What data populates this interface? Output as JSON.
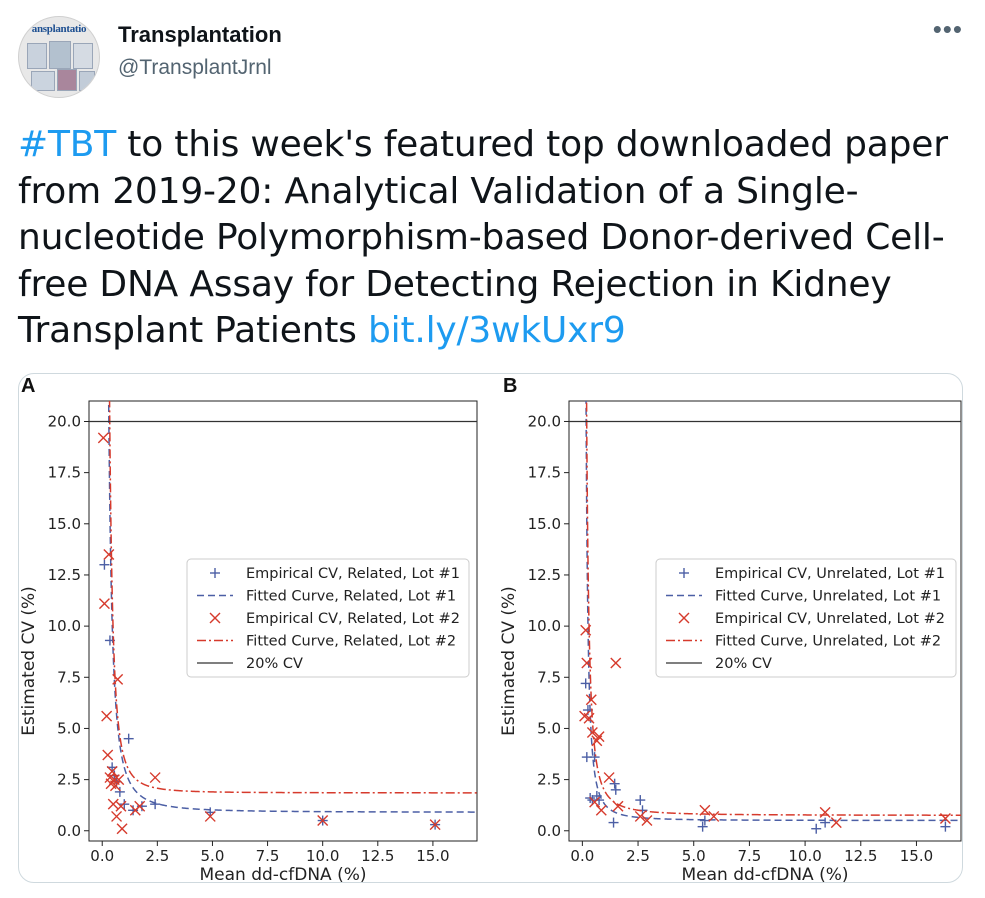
{
  "account": {
    "display_name": "Transplantation",
    "handle": "@TransplantJrnl",
    "avatar_text": "ansplantatio"
  },
  "menu": {
    "more_label": "•••"
  },
  "tweet": {
    "hashtag": "#TBT",
    "text": " to this week's featured top downloaded paper from 2019-20: Analytical Validation of a Single-nucleotide Polymorphism-based Donor-derived Cell-free DNA Assay for Detecting Rejection in Kidney Transplant Patients ",
    "link": "bit.ly/3wkUxr9"
  },
  "colors": {
    "link": "#1d9bf0",
    "series_blue": "#4c5fa5",
    "series_red": "#d63a2c"
  },
  "chart_data": [
    {
      "panel_label": "A",
      "type": "scatter",
      "xlabel": "Mean dd-cfDNA (%)",
      "ylabel": "Estimated CV (%)",
      "xlim": [
        -0.6,
        17.0
      ],
      "ylim": [
        -0.5,
        21.0
      ],
      "xticks": [
        "0.0",
        "2.5",
        "5.0",
        "7.5",
        "10.0",
        "12.5",
        "15.0"
      ],
      "yticks": [
        "0.0",
        "2.5",
        "5.0",
        "7.5",
        "10.0",
        "12.5",
        "15.0",
        "17.5",
        "20.0"
      ],
      "legend": [
        "Empirical CV, Related, Lot #1",
        "Fitted Curve, Related, Lot #1",
        "Empirical CV, Related, Lot #2",
        "Fitted Curve, Related, Lot #2",
        "20% CV"
      ],
      "series": [
        {
          "name": "Empirical CV, Related, Lot #1",
          "marker": "plus",
          "points": [
            [
              0.1,
              13.0
            ],
            [
              0.35,
              9.3
            ],
            [
              0.45,
              3.1
            ],
            [
              0.55,
              2.7
            ],
            [
              0.65,
              2.4
            ],
            [
              0.8,
              1.9
            ],
            [
              1.0,
              1.3
            ],
            [
              1.2,
              4.5
            ],
            [
              1.4,
              1.0
            ],
            [
              1.8,
              1.2
            ],
            [
              2.4,
              1.3
            ],
            [
              4.9,
              0.9
            ],
            [
              10.0,
              0.5
            ],
            [
              15.1,
              0.3
            ]
          ]
        },
        {
          "name": "Fitted Curve, Related, Lot #1",
          "style": "dashed",
          "asymptote": 0.9,
          "k": 2.2,
          "n": 1.8,
          "x_start": 0.05
        },
        {
          "name": "Empirical CV, Related, Lot #2",
          "marker": "x",
          "points": [
            [
              0.05,
              19.2
            ],
            [
              0.1,
              11.1
            ],
            [
              0.2,
              5.6
            ],
            [
              0.25,
              3.7
            ],
            [
              0.3,
              13.5
            ],
            [
              0.35,
              2.6
            ],
            [
              0.4,
              2.3
            ],
            [
              0.45,
              2.9
            ],
            [
              0.5,
              1.3
            ],
            [
              0.55,
              2.5
            ],
            [
              0.6,
              2.2
            ],
            [
              0.65,
              0.7
            ],
            [
              0.7,
              7.4
            ],
            [
              0.75,
              2.5
            ],
            [
              0.85,
              1.2
            ],
            [
              0.9,
              0.1
            ],
            [
              1.5,
              1.0
            ],
            [
              1.7,
              1.2
            ],
            [
              2.4,
              2.6
            ],
            [
              4.9,
              0.7
            ],
            [
              10.0,
              0.5
            ],
            [
              15.1,
              0.3
            ]
          ]
        },
        {
          "name": "Fitted Curve, Related, Lot #2",
          "style": "dashdot",
          "asymptote": 1.85,
          "k": 1.7,
          "n": 2.2,
          "x_start": 0.02
        },
        {
          "name": "20% CV",
          "style": "solid",
          "y": 20.0
        }
      ]
    },
    {
      "panel_label": "B",
      "type": "scatter",
      "xlabel": "Mean dd-cfDNA (%)",
      "ylabel": "Estimated CV (%)",
      "xlim": [
        -0.6,
        17.0
      ],
      "ylim": [
        -0.5,
        21.0
      ],
      "xticks": [
        "0.0",
        "2.5",
        "5.0",
        "7.5",
        "10.0",
        "12.5",
        "15.0"
      ],
      "yticks": [
        "0.0",
        "2.5",
        "5.0",
        "7.5",
        "10.0",
        "12.5",
        "15.0",
        "17.5",
        "20.0"
      ],
      "legend": [
        "Empirical CV, Unrelated, Lot #1",
        "Fitted Curve, Unrelated, Lot #1",
        "Empirical CV, Unrelated, Lot #2",
        "Fitted Curve, Unrelated, Lot #2",
        "20% CV"
      ],
      "series": [
        {
          "name": "Empirical CV, Unrelated, Lot #1",
          "marker": "plus",
          "points": [
            [
              0.15,
              7.2
            ],
            [
              0.2,
              3.6
            ],
            [
              0.25,
              5.9
            ],
            [
              0.35,
              1.6
            ],
            [
              0.45,
              1.5
            ],
            [
              0.55,
              3.6
            ],
            [
              0.65,
              1.7
            ],
            [
              0.75,
              1.5
            ],
            [
              1.4,
              0.4
            ],
            [
              1.45,
              2.3
            ],
            [
              1.5,
              2.0
            ],
            [
              2.6,
              1.5
            ],
            [
              2.7,
              1.0
            ],
            [
              5.4,
              0.2
            ],
            [
              5.5,
              0.5
            ],
            [
              10.5,
              0.1
            ],
            [
              10.9,
              0.4
            ],
            [
              16.3,
              0.2
            ]
          ]
        },
        {
          "name": "Fitted Curve, Unrelated, Lot #1",
          "style": "dashed",
          "asymptote": 0.5,
          "k": 0.8,
          "n": 1.8,
          "x_start": 0.1
        },
        {
          "name": "Empirical CV, Unrelated, Lot #2",
          "marker": "x",
          "points": [
            [
              0.1,
              5.6
            ],
            [
              0.15,
              9.8
            ],
            [
              0.2,
              8.2
            ],
            [
              0.3,
              5.5
            ],
            [
              0.4,
              6.4
            ],
            [
              0.45,
              4.8
            ],
            [
              0.55,
              1.4
            ],
            [
              0.65,
              4.4
            ],
            [
              0.75,
              4.6
            ],
            [
              0.85,
              1.0
            ],
            [
              1.2,
              2.6
            ],
            [
              1.5,
              8.2
            ],
            [
              1.6,
              1.2
            ],
            [
              2.6,
              0.7
            ],
            [
              2.9,
              0.5
            ],
            [
              5.5,
              1.0
            ],
            [
              5.9,
              0.7
            ],
            [
              10.9,
              0.9
            ],
            [
              11.4,
              0.4
            ],
            [
              16.3,
              0.6
            ]
          ]
        },
        {
          "name": "Fitted Curve, Unrelated, Lot #2",
          "style": "dashdot",
          "asymptote": 0.75,
          "k": 1.2,
          "n": 1.7,
          "x_start": 0.1
        },
        {
          "name": "20% CV",
          "style": "solid",
          "y": 20.0
        }
      ]
    }
  ]
}
